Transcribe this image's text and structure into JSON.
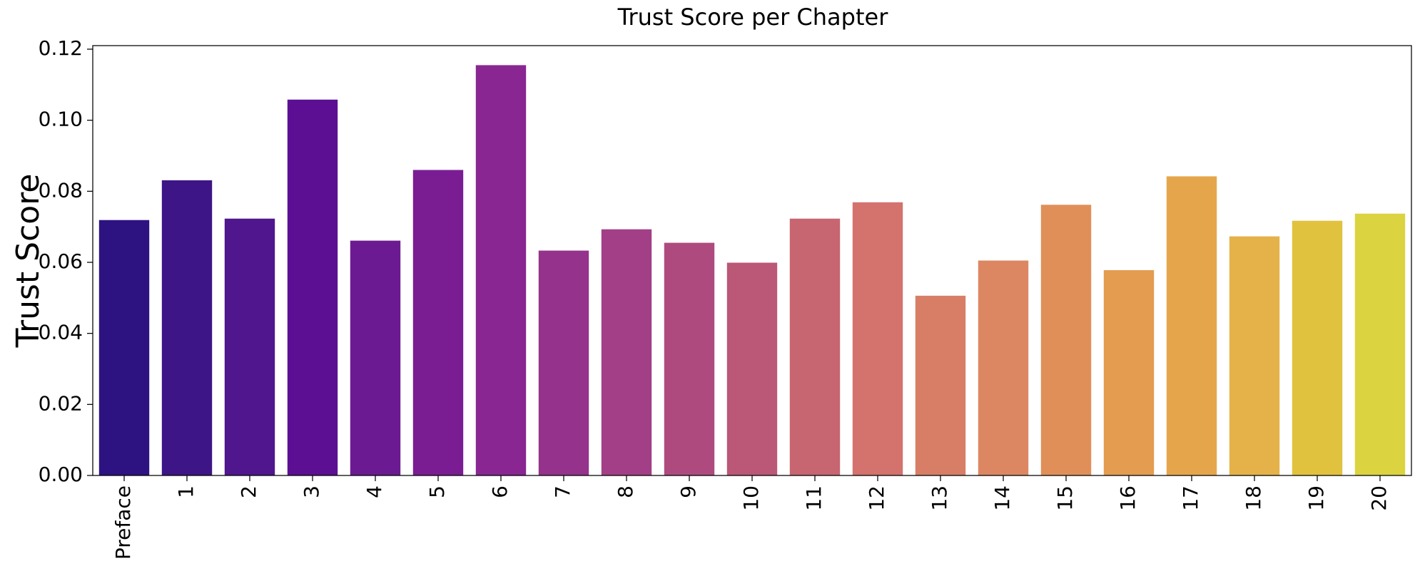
{
  "chart_data": {
    "type": "bar",
    "title": "Trust Score per Chapter",
    "xlabel": "",
    "ylabel": "Trust Score",
    "ylim": [
      0,
      0.121
    ],
    "yticks": [
      "0.00",
      "0.02",
      "0.04",
      "0.06",
      "0.08",
      "0.10",
      "0.12"
    ],
    "grid": false,
    "categories": [
      "Preface",
      "1",
      "2",
      "3",
      "4",
      "5",
      "6",
      "7",
      "8",
      "9",
      "10",
      "11",
      "12",
      "13",
      "14",
      "15",
      "16",
      "17",
      "18",
      "19",
      "20"
    ],
    "values": [
      0.0719,
      0.0831,
      0.0723,
      0.1058,
      0.0661,
      0.086,
      0.1155,
      0.0633,
      0.0693,
      0.0655,
      0.0599,
      0.0723,
      0.0769,
      0.0506,
      0.0605,
      0.0762,
      0.0578,
      0.0842,
      0.0673,
      0.0717,
      0.0737
    ],
    "colors": [
      "#2d1381",
      "#3e1586",
      "#4f168e",
      "#5d0f93",
      "#6c1a92",
      "#7a1d92",
      "#892692",
      "#95328c",
      "#a23f86",
      "#ae4a7e",
      "#bb5777",
      "#c76571",
      "#d4726d",
      "#d87e66",
      "#dc8762",
      "#e18f58",
      "#e49c50",
      "#e5a64b",
      "#e5b249",
      "#e1c23e",
      "#dbd33f"
    ]
  }
}
